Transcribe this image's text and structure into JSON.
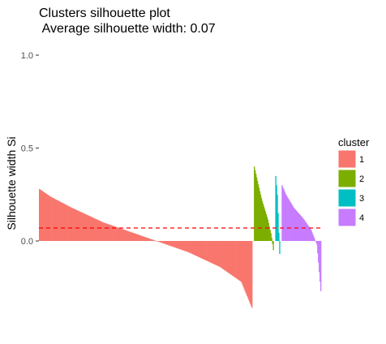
{
  "chart_data": {
    "type": "bar",
    "title_line1": "Clusters silhouette plot",
    "title_line2": " Average silhouette width: 0.07",
    "ylabel": "Silhouette width Si",
    "xlabel": "",
    "ylim": [
      -0.36,
      1.0
    ],
    "yticks": [
      0.0,
      0.5,
      1.0
    ],
    "ytick_labels": [
      "0.0",
      "0.5",
      "1.0"
    ],
    "average_silhouette_width": 0.07,
    "reference_line": {
      "value": 0.07,
      "style": "dashed",
      "color": "#FF0000"
    },
    "legend": {
      "title": "cluster",
      "position": "right"
    },
    "series": [
      {
        "name": "1",
        "color": "#F8766D",
        "n": 270,
        "max": 0.28,
        "min": -0.36,
        "profile": [
          [
            0,
            0.28
          ],
          [
            0.05,
            0.24
          ],
          [
            0.15,
            0.18
          ],
          [
            0.3,
            0.1
          ],
          [
            0.5,
            0.02
          ],
          [
            0.7,
            -0.06
          ],
          [
            0.85,
            -0.14
          ],
          [
            0.95,
            -0.22
          ],
          [
            1,
            -0.36
          ]
        ]
      },
      {
        "name": "2",
        "color": "#7CAE00",
        "n": 25,
        "max": 0.4,
        "min": -0.05,
        "profile": [
          [
            0,
            0.4
          ],
          [
            0.15,
            0.33
          ],
          [
            0.4,
            0.22
          ],
          [
            0.7,
            0.12
          ],
          [
            0.9,
            0.03
          ],
          [
            1,
            -0.05
          ]
        ]
      },
      {
        "name": "3",
        "color": "#00BFC4",
        "n": 6,
        "max": 0.35,
        "min": -0.07,
        "profile": [
          [
            0,
            0.35
          ],
          [
            0.4,
            0.25
          ],
          [
            0.7,
            0.1
          ],
          [
            1,
            -0.07
          ]
        ]
      },
      {
        "name": "4",
        "color": "#C77CFF",
        "n": 50,
        "max": 0.3,
        "min": -0.27,
        "profile": [
          [
            0,
            0.3
          ],
          [
            0.1,
            0.25
          ],
          [
            0.3,
            0.18
          ],
          [
            0.55,
            0.12
          ],
          [
            0.75,
            0.06
          ],
          [
            0.9,
            -0.02
          ],
          [
            1,
            -0.27
          ]
        ]
      }
    ]
  }
}
